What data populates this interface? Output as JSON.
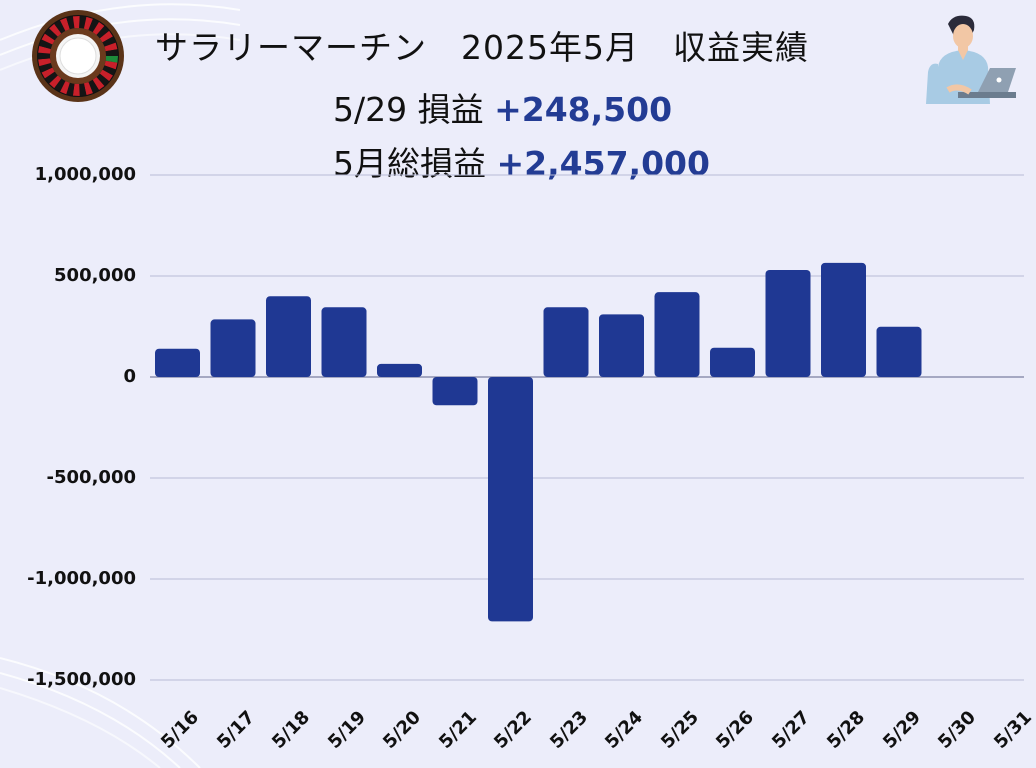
{
  "header": {
    "title": "サラリーマーチン　2025年5月　収益実績",
    "daily_label": "5/29 損益",
    "daily_value": "+248,500",
    "monthly_label": "5月総損益",
    "monthly_value": "+2,457,000"
  },
  "colors": {
    "bar": "#1f3893",
    "background": "#ecedfa",
    "grid": "#b8bcd6",
    "value_text": "#233c94"
  },
  "icons": {
    "roulette": "roulette-wheel-icon",
    "person": "man-with-laptop-icon"
  },
  "chart_data": {
    "type": "bar",
    "categories": [
      "5/16",
      "5/17",
      "5/18",
      "5/19",
      "5/20",
      "5/21",
      "5/22",
      "5/23",
      "5/24",
      "5/25",
      "5/26",
      "5/27",
      "5/28",
      "5/29",
      "5/30",
      "5/31"
    ],
    "values": [
      140000,
      285000,
      400000,
      345000,
      65000,
      -140000,
      -1210000,
      345000,
      310000,
      420000,
      145000,
      530000,
      565000,
      248500,
      null,
      null
    ],
    "yticks": [
      "1,000,000",
      "500,000",
      "0",
      "-500,000",
      "-1,000,000",
      "-1,500,000"
    ],
    "ytick_values": [
      1000000,
      500000,
      0,
      -500000,
      -1000000,
      -1500000
    ],
    "ylim": [
      -1500000,
      1000000
    ],
    "grid": true
  }
}
